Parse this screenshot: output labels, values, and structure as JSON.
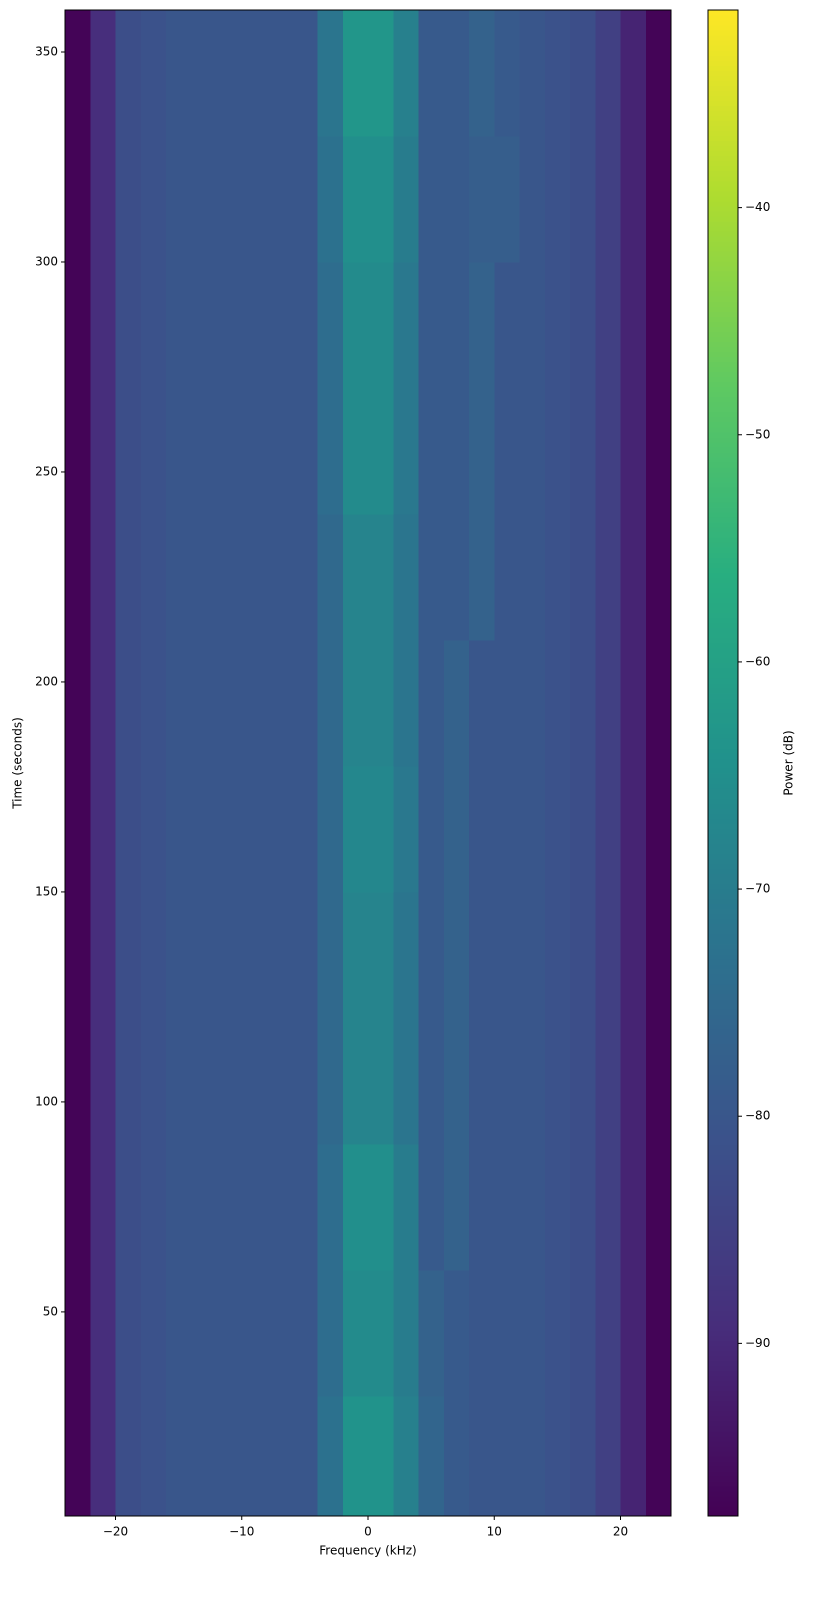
{
  "chart_data": {
    "type": "heatmap",
    "x_label": "Frequency (kHz)",
    "y_label": "Time (seconds)",
    "colorbar_label": "Power (dB)",
    "colormap": "viridis",
    "xlim": [
      -24,
      24
    ],
    "ylim": [
      1.4,
      360
    ],
    "clim": [
      -97.6,
      -31.3
    ],
    "xticks": [
      {
        "value": -20,
        "label": "−20"
      },
      {
        "value": -10,
        "label": "−10"
      },
      0,
      10,
      20
    ],
    "yticks": [
      50,
      100,
      150,
      200,
      250,
      300,
      350
    ],
    "cticks": [
      {
        "value": -90,
        "label": "−90"
      },
      {
        "value": -80,
        "label": "−80"
      },
      {
        "value": -70,
        "label": "−70"
      },
      {
        "value": -60,
        "label": "−60"
      },
      {
        "value": -50,
        "label": "−50"
      },
      {
        "value": -40,
        "label": "−40"
      }
    ],
    "x_bins": [
      -24,
      -22,
      -20,
      -18,
      -16,
      -14,
      -12,
      -10,
      -8,
      -6,
      -4,
      -2,
      0,
      2,
      4,
      6,
      8,
      10,
      12,
      14,
      16,
      18,
      20,
      22,
      24
    ],
    "y_bins": [
      0,
      30,
      60,
      90,
      120,
      150,
      180,
      210,
      240,
      270,
      300,
      330,
      360
    ],
    "values": [
      [
        -97,
        -89,
        -82,
        -81,
        -80,
        -80,
        -80,
        -80,
        -80,
        -80,
        -73,
        -64,
        -64,
        -69,
        -76,
        -79,
        -80,
        -80,
        -80,
        -81,
        -82,
        -85,
        -91,
        -97
      ],
      [
        -97,
        -89,
        -82,
        -81,
        -80,
        -80,
        -80,
        -80,
        -80,
        -80,
        -74,
        -66,
        -66,
        -70,
        -77,
        -79,
        -80,
        -80,
        -80,
        -81,
        -82,
        -85,
        -91,
        -97
      ],
      [
        -97,
        -89,
        -82,
        -81,
        -80,
        -80,
        -80,
        -80,
        -80,
        -80,
        -74,
        -65,
        -65,
        -70,
        -79,
        -77,
        -80,
        -80,
        -80,
        -81,
        -82,
        -85,
        -91,
        -97
      ],
      [
        -97,
        -89,
        -82,
        -81,
        -80,
        -80,
        -80,
        -80,
        -80,
        -80,
        -75,
        -68,
        -68,
        -72,
        -79,
        -77,
        -80,
        -80,
        -80,
        -81,
        -82,
        -85,
        -91,
        -97
      ],
      [
        -97,
        -89,
        -82,
        -81,
        -80,
        -80,
        -80,
        -80,
        -80,
        -80,
        -75,
        -68,
        -68,
        -72,
        -79,
        -77,
        -80,
        -80,
        -80,
        -81,
        -82,
        -85,
        -91,
        -97
      ],
      [
        -97,
        -89,
        -82,
        -81,
        -80,
        -80,
        -80,
        -80,
        -80,
        -80,
        -75,
        -67,
        -67,
        -71,
        -79,
        -77,
        -80,
        -80,
        -80,
        -81,
        -82,
        -85,
        -91,
        -97
      ],
      [
        -97,
        -89,
        -82,
        -81,
        -80,
        -80,
        -80,
        -80,
        -80,
        -80,
        -75,
        -68,
        -68,
        -72,
        -79,
        -77,
        -80,
        -80,
        -80,
        -81,
        -82,
        -85,
        -91,
        -97
      ],
      [
        -97,
        -89,
        -82,
        -81,
        -80,
        -80,
        -80,
        -80,
        -80,
        -80,
        -75,
        -68,
        -68,
        -72,
        -79,
        -79,
        -77,
        -80,
        -80,
        -81,
        -82,
        -85,
        -91,
        -97
      ],
      [
        -97,
        -89,
        -82,
        -81,
        -80,
        -80,
        -80,
        -80,
        -80,
        -80,
        -74,
        -66,
        -66,
        -71,
        -79,
        -79,
        -77,
        -80,
        -80,
        -81,
        -82,
        -85,
        -91,
        -97
      ],
      [
        -97,
        -89,
        -82,
        -81,
        -80,
        -80,
        -80,
        -80,
        -80,
        -80,
        -74,
        -66,
        -66,
        -71,
        -79,
        -79,
        -77,
        -80,
        -80,
        -81,
        -82,
        -85,
        -91,
        -97
      ],
      [
        -97,
        -89,
        -82,
        -81,
        -80,
        -80,
        -80,
        -80,
        -80,
        -80,
        -73,
        -65,
        -65,
        -70,
        -79,
        -79,
        -78,
        -78,
        -80,
        -81,
        -82,
        -85,
        -91,
        -97
      ],
      [
        -97,
        -89,
        -82,
        -81,
        -80,
        -80,
        -80,
        -80,
        -80,
        -80,
        -72,
        -63,
        -63,
        -69,
        -79,
        -79,
        -77,
        -79,
        -80,
        -81,
        -82,
        -85,
        -91,
        -97
      ]
    ]
  }
}
